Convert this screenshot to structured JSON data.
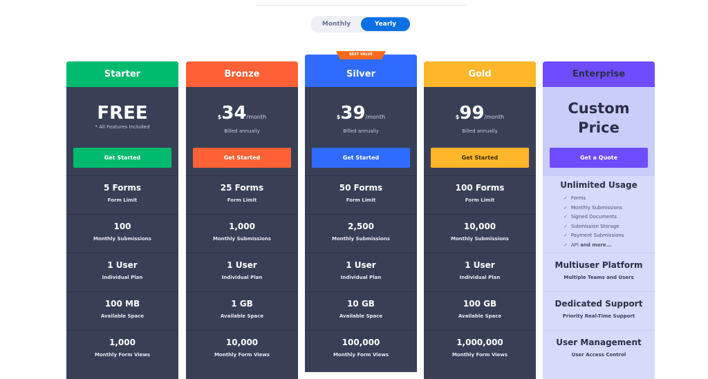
{
  "billing_toggle": {
    "options": [
      "Monthly",
      "Yearly"
    ],
    "selected": "Yearly"
  },
  "badge": "BEST VALUE",
  "plans": [
    {
      "name": "Starter",
      "color": "#00bb6e",
      "price": "FREE",
      "currency": "",
      "period": "",
      "note": "* All Features Included",
      "button": "Get Started",
      "features": [
        [
          "5 Forms",
          "Form Limit"
        ],
        [
          "100",
          "Monthly Submissions"
        ],
        [
          "1 User",
          "Individual Plan"
        ],
        [
          "100 MB",
          "Available Space"
        ],
        [
          "1,000",
          "Monthly Form Views"
        ]
      ]
    },
    {
      "name": "Bronze",
      "color": "#ff6136",
      "price": "34",
      "currency": "$",
      "period": "/month",
      "note": "Billed annually",
      "button": "Get Started",
      "features": [
        [
          "25 Forms",
          "Form Limit"
        ],
        [
          "1,000",
          "Monthly Submissions"
        ],
        [
          "1 User",
          "Individual Plan"
        ],
        [
          "1 GB",
          "Available Space"
        ],
        [
          "10,000",
          "Monthly Form Views"
        ]
      ]
    },
    {
      "name": "Silver",
      "color": "#2f6bff",
      "price": "39",
      "currency": "$",
      "period": "/month",
      "note": "Billed annually",
      "button": "Get Started",
      "features": [
        [
          "50 Forms",
          "Form Limit"
        ],
        [
          "2,500",
          "Monthly Submissions"
        ],
        [
          "1 User",
          "Individual Plan"
        ],
        [
          "10 GB",
          "Available Space"
        ],
        [
          "100,000",
          "Monthly Form Views"
        ]
      ]
    },
    {
      "name": "Gold",
      "color": "#ffb629",
      "price": "99",
      "currency": "$",
      "period": "/month",
      "note": "Billed annually",
      "button": "Get Started",
      "features": [
        [
          "100 Forms",
          "Form Limit"
        ],
        [
          "10,000",
          "Monthly Submissions"
        ],
        [
          "1 User",
          "Individual Plan"
        ],
        [
          "100 GB",
          "Available Space"
        ],
        [
          "1,000,000",
          "Monthly Form Views"
        ]
      ]
    },
    {
      "name": "Enterprise",
      "color": "#6f4cff",
      "price": "Custom Price",
      "button": "Get a Quote",
      "unlimited": {
        "title": "Unlimited Usage",
        "items": [
          "Forms",
          "Monthly Submissions",
          "Signed Documents",
          "Submission Storage",
          "Payment Submissions",
          "API"
        ],
        "more": "and more..."
      },
      "features": [
        [
          "Multiuser Platform",
          "Multiple Teams and Users"
        ],
        [
          "Dedicated Support",
          "Priority Real-Time Support"
        ],
        [
          "User Management",
          "User Access Control"
        ]
      ]
    }
  ]
}
